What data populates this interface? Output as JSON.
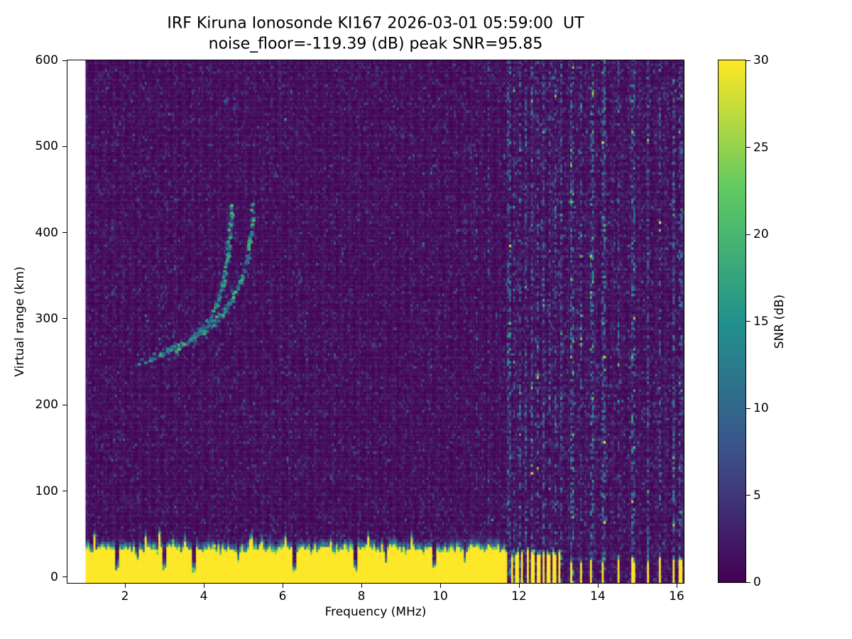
{
  "title": "IRF Kiruna Ionosonde KI167 2026-03-01 05:59:00  UT",
  "subtitle": "noise_floor=-119.39 (dB) peak SNR=95.85",
  "chart_data": {
    "type": "heatmap",
    "xlabel": "Frequency (MHz)",
    "ylabel": "Virtual range (km)",
    "colorbar_label": "SNR (dB)",
    "xlim": [
      0.54,
      16.18
    ],
    "ylim": [
      -6.6,
      600
    ],
    "clim": [
      0,
      30
    ],
    "x_ticks": [
      2,
      4,
      6,
      8,
      10,
      12,
      14,
      16
    ],
    "y_ticks": [
      0,
      100,
      200,
      300,
      400,
      500,
      600
    ],
    "colorbar_ticks": [
      0,
      5,
      10,
      15,
      20,
      25,
      30
    ],
    "data_freq_range": [
      1.0,
      16.18
    ],
    "freq_step": 0.05,
    "range_step": 3,
    "colormap": "viridis",
    "viridis_stops": [
      [
        0,
        "#440154"
      ],
      [
        0.25,
        "#3b528b"
      ],
      [
        0.5,
        "#21918c"
      ],
      [
        0.75,
        "#5ec962"
      ],
      [
        1,
        "#fde725"
      ]
    ],
    "noise": {
      "mean_db": 1.2,
      "speckle_prob": 0.035,
      "speckle_max_db": 9
    },
    "ground_clutter": {
      "solid_top_km": 30,
      "fringe_km": 10,
      "value_db": 30,
      "notch_freqs": [
        1.77,
        2.98,
        3.73,
        6.27,
        7.84,
        9.82
      ],
      "shallow_notch_freqs": [
        2.3,
        4.85,
        8.6,
        10.6
      ],
      "notch_width_mhz": 0.09,
      "enhanced_fringe": [
        10.2,
        11.6
      ],
      "segmented": {
        "start": 11.62,
        "end": 13.05,
        "period": 0.135,
        "duty": 0.55,
        "top_km": 26
      },
      "sparse_bars": [
        13.32,
        13.55,
        13.82,
        14.12,
        14.5,
        14.88,
        15.25,
        15.55,
        15.9,
        16.08
      ],
      "sparse_width_mhz": 0.06,
      "sparse_top_km": 18
    },
    "interference_stripes": [
      {
        "f": 11.72,
        "s": 2.5
      },
      {
        "f": 11.85,
        "s": 2.0
      },
      {
        "f": 12.0,
        "s": 2.5
      },
      {
        "f": 12.15,
        "s": 2.0
      },
      {
        "f": 12.3,
        "s": 2.5
      },
      {
        "f": 12.45,
        "s": 2.0
      },
      {
        "f": 12.6,
        "s": 2.5
      },
      {
        "f": 12.75,
        "s": 2.0
      },
      {
        "f": 12.9,
        "s": 2.5
      },
      {
        "f": 13.05,
        "s": 2.0
      },
      {
        "f": 13.32,
        "s": 3.0
      },
      {
        "f": 13.55,
        "s": 2.5
      },
      {
        "f": 13.82,
        "s": 3.0
      },
      {
        "f": 14.12,
        "s": 3.0
      },
      {
        "f": 14.5,
        "s": 2.5
      },
      {
        "f": 14.88,
        "s": 3.0
      },
      {
        "f": 15.25,
        "s": 2.5
      },
      {
        "f": 15.55,
        "s": 2.5
      },
      {
        "f": 15.9,
        "s": 3.0
      },
      {
        "f": 16.08,
        "s": 2.5
      },
      {
        "f": 6.2,
        "s": 0.7
      },
      {
        "f": 9.55,
        "s": 0.7
      },
      {
        "f": 10.9,
        "s": 1.0
      },
      {
        "f": 11.2,
        "s": 1.0
      }
    ],
    "trace_o_mode": [
      [
        2.35,
        248
      ],
      [
        2.8,
        256
      ],
      [
        3.2,
        264
      ],
      [
        3.6,
        274
      ],
      [
        3.9,
        286
      ],
      [
        4.15,
        300
      ],
      [
        4.35,
        320
      ],
      [
        4.5,
        348
      ],
      [
        4.6,
        385
      ],
      [
        4.68,
        432
      ]
    ],
    "trace_x_mode": [
      [
        3.2,
        262
      ],
      [
        3.6,
        272
      ],
      [
        3.95,
        284
      ],
      [
        4.3,
        297
      ],
      [
        4.6,
        314
      ],
      [
        4.85,
        335
      ],
      [
        5.05,
        362
      ],
      [
        5.15,
        395
      ],
      [
        5.22,
        430
      ]
    ]
  }
}
